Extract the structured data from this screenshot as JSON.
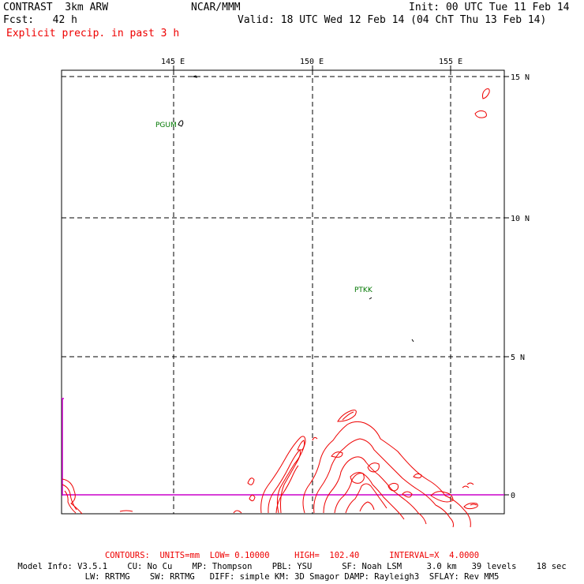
{
  "header": {
    "model": "CONTRAST  3km ARW",
    "org": "NCAR/MMM",
    "init": "Init: 00 UTC Tue 11 Feb 14",
    "fcst": "Fcst:   42 h",
    "valid": "Valid: 18 UTC Wed 12 Feb 14 (04 ChT Thu 13 Feb 14)",
    "field": "Explicit precip. in past 3 h"
  },
  "map": {
    "lon_labels": [
      "145 E",
      "150 E",
      "155 E"
    ],
    "lat_labels": [
      "15 N",
      "10 N",
      "5 N",
      "0"
    ],
    "stations": [
      "PGUM",
      "PTKK"
    ],
    "colors": {
      "contour": "#ee0000",
      "grid": "#000000",
      "station": "#007700",
      "boundary": "#cc00cc"
    }
  },
  "footer": {
    "contours": "CONTOURS:  UNITS=mm  LOW= 0.10000     HIGH=  102.40      INTERVAL=X  4.0000",
    "model_info_1": "Model Info: V3.5.1    CU: No Cu    MP: Thompson    PBL: YSU      SF: Noah LSM     3.0 km   39 levels    18 sec",
    "model_info_2": "LW: RRTMG    SW: RRTMG   DIFF: simple KM: 3D Smagor DAMP: Rayleigh3  SFLAY: Rev MM5"
  }
}
